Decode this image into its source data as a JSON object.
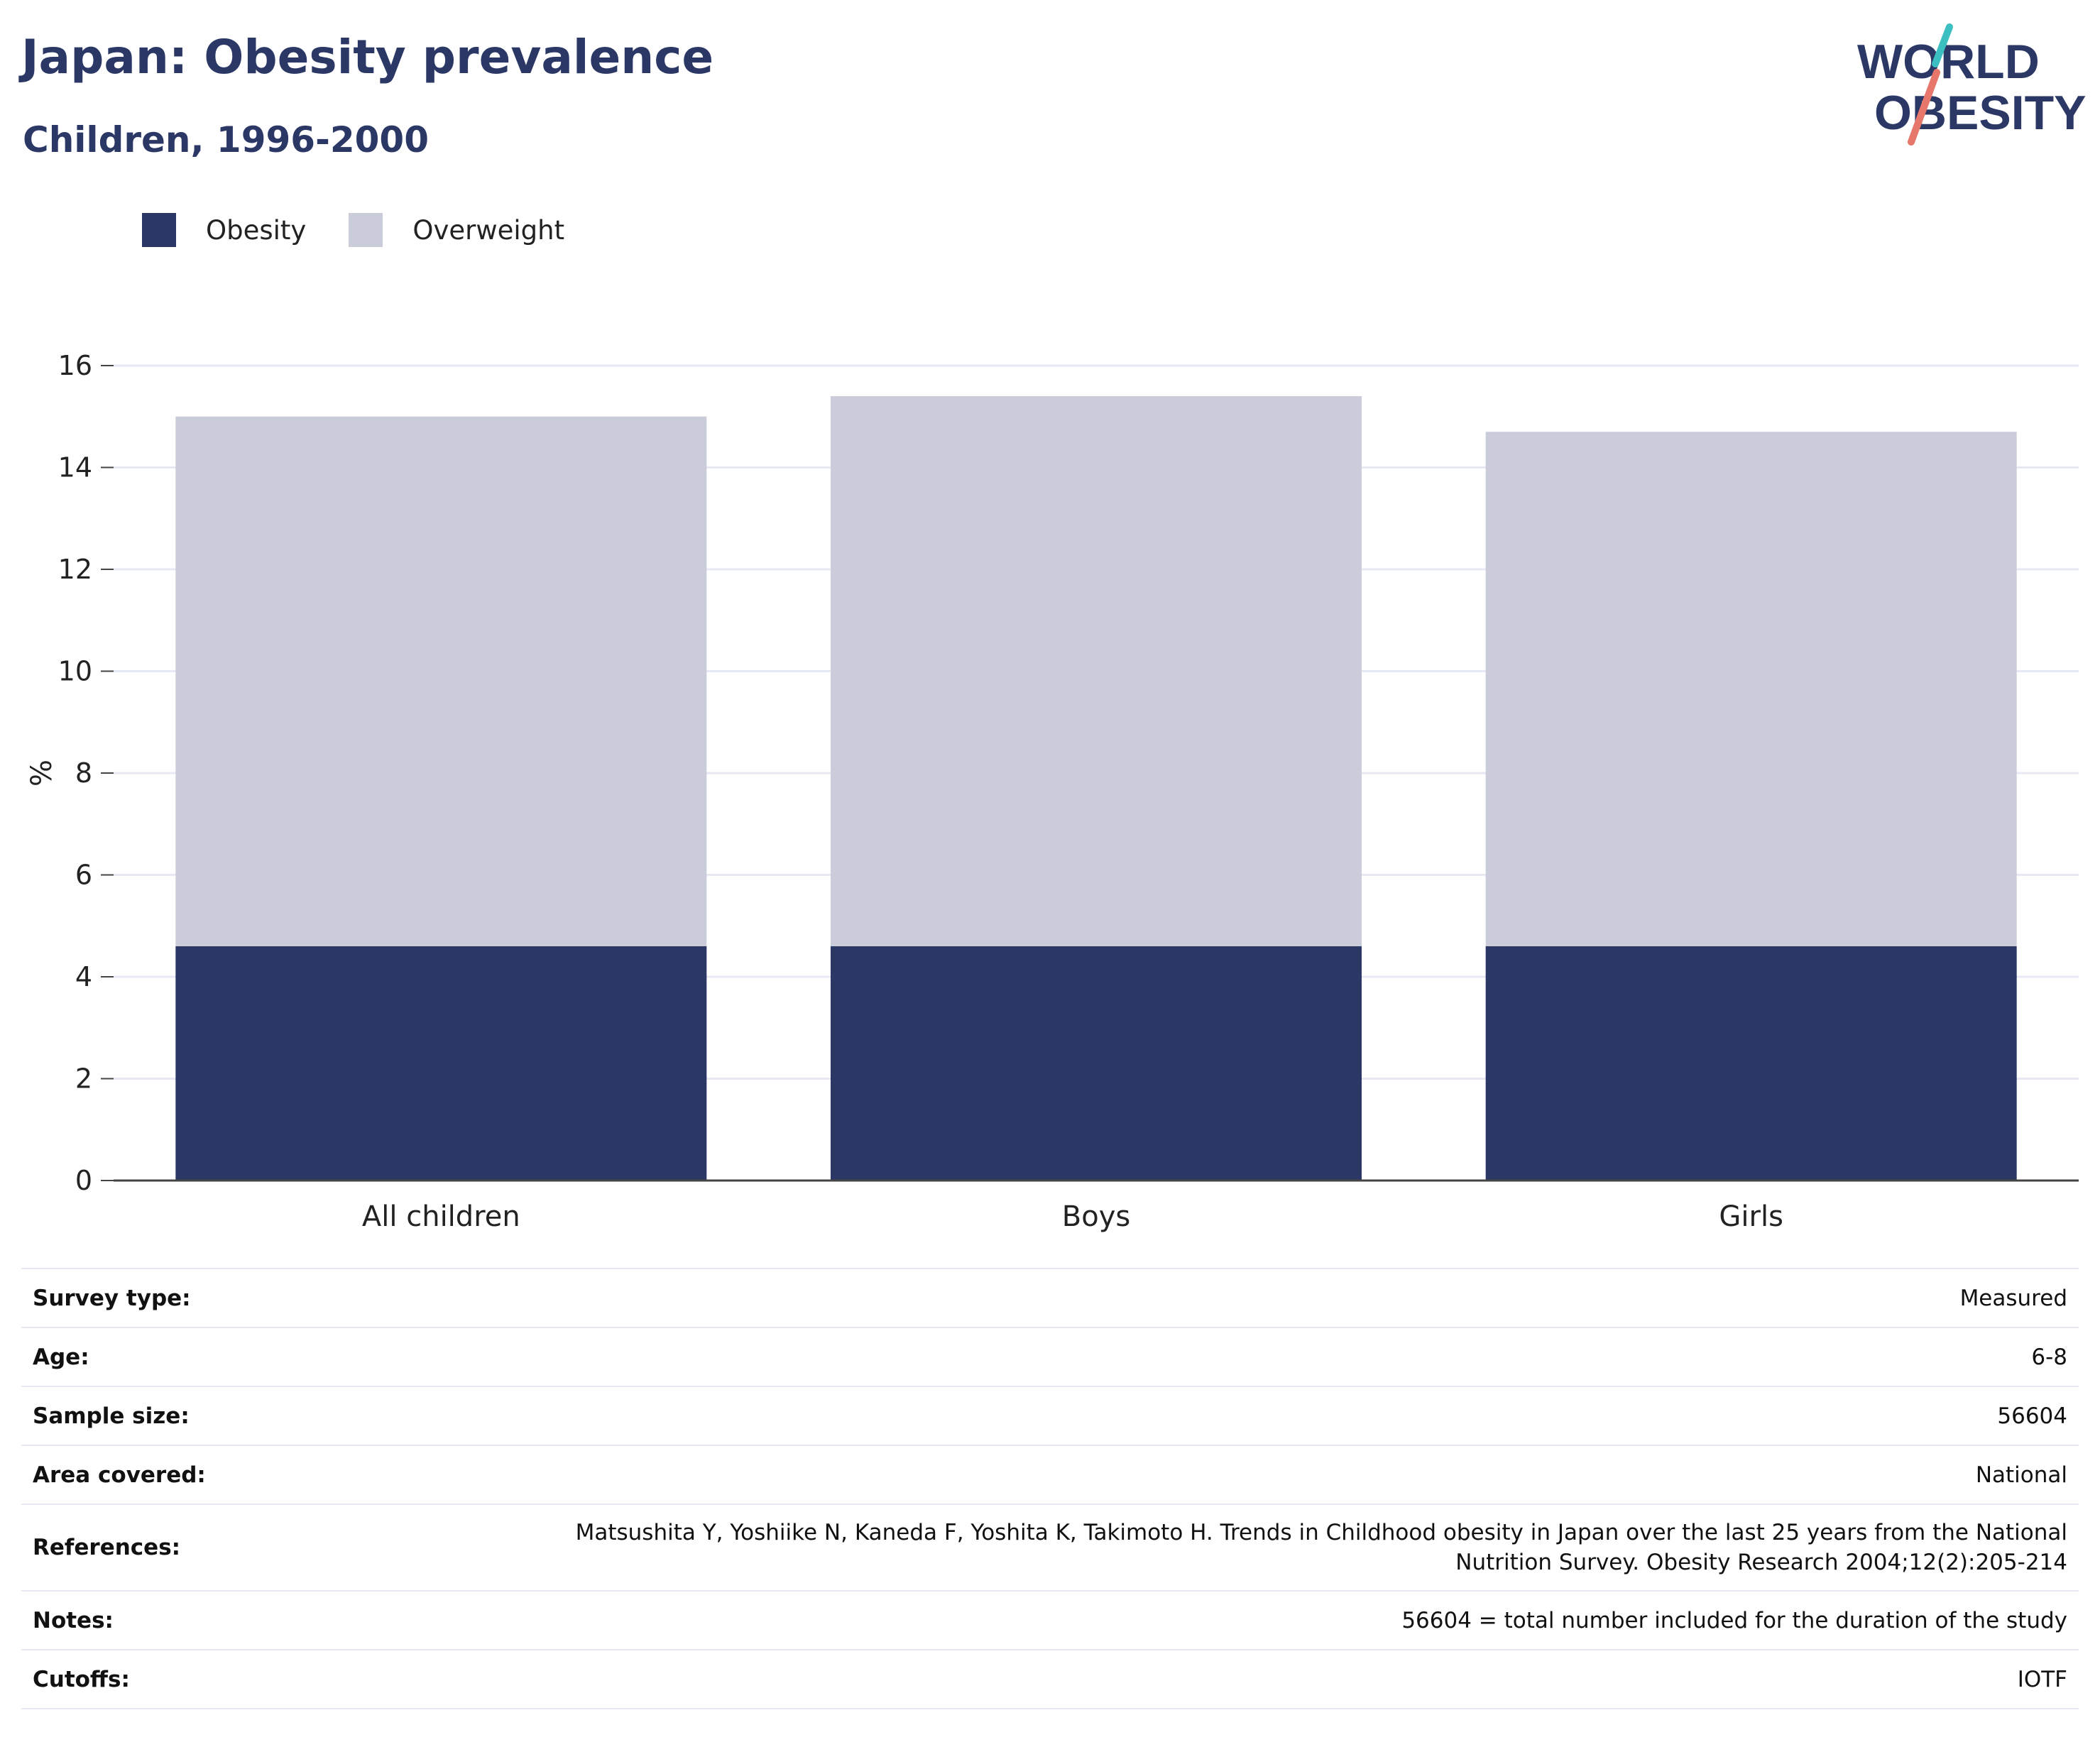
{
  "header": {
    "title": "Japan: Obesity prevalence",
    "subtitle": "Children, 1996-2000",
    "logo_line1": "WORLD",
    "logo_line2": "OBESITY"
  },
  "colors": {
    "obesity": "#2b3866",
    "overweight": "#cacdd9",
    "brand_teal": "#3bbfc0",
    "brand_coral": "#e8776b",
    "grid": "#e6e9f4",
    "axis": "#444444"
  },
  "legend": [
    {
      "label": "Obesity",
      "color": "#2b3866"
    },
    {
      "label": "Overweight",
      "color": "#cacdd9"
    }
  ],
  "chart_data": {
    "type": "bar",
    "stacked": true,
    "categories": [
      "All children",
      "Boys",
      "Girls"
    ],
    "series": [
      {
        "name": "Obesity",
        "values": [
          4.6,
          4.6,
          4.6
        ]
      },
      {
        "name": "Overweight",
        "values": [
          10.4,
          10.8,
          10.1
        ]
      }
    ],
    "ylabel": "%",
    "ylim": [
      0,
      16
    ],
    "yticks": [
      0,
      2,
      4,
      6,
      8,
      10,
      12,
      14,
      16
    ],
    "grid": true,
    "legend_position": "top-left"
  },
  "meta": [
    {
      "key": "Survey type:",
      "value": "Measured"
    },
    {
      "key": "Age:",
      "value": "6-8"
    },
    {
      "key": "Sample size:",
      "value": "56604"
    },
    {
      "key": "Area covered:",
      "value": "National"
    },
    {
      "key": "References:",
      "value_lines": [
        "Matsushita Y, Yoshiike N, Kaneda F, Yoshita K, Takimoto H. Trends in Childhood obesity in Japan over the last 25 years from the National",
        "Nutrition Survey. Obesity Research 2004;12(2):205-214"
      ]
    },
    {
      "key": "Notes:",
      "value": "56604 = total number included for the duration of the study"
    },
    {
      "key": "Cutoffs:",
      "value": "IOTF"
    }
  ]
}
